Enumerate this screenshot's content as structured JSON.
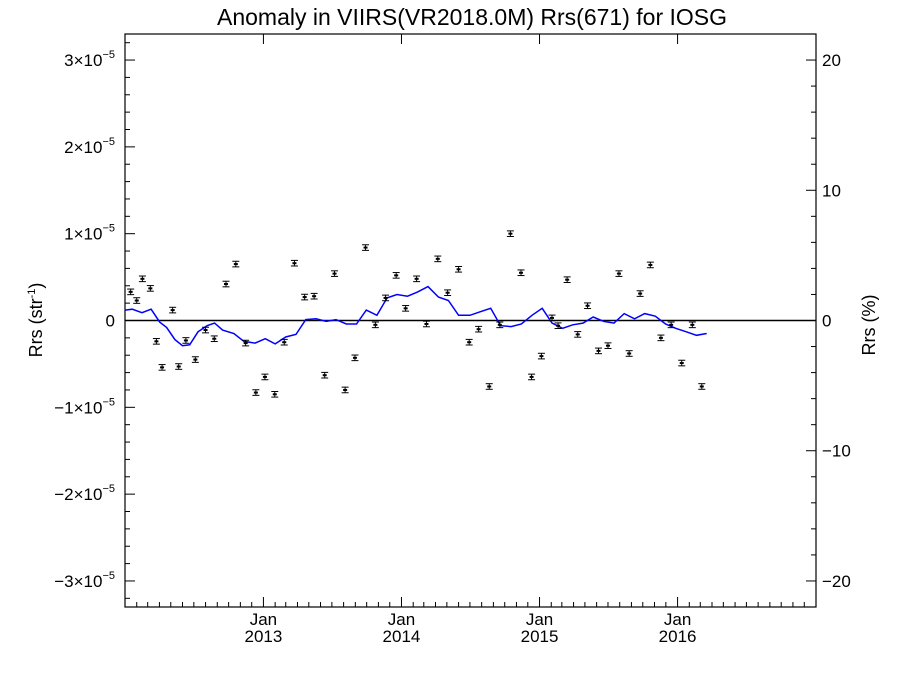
{
  "chart_data": {
    "type": "line",
    "title": "Anomaly in VIIRS(VR2018.0M) Rrs(671) for IOSG",
    "ylabel": "Rrs (str",
    "ylabel_sup": "-1",
    "ylabel_close": ")",
    "y2label": "Rrs (%)",
    "xlim": [
      "2012-01-01",
      "2017-01-01"
    ],
    "ylim": [
      -3.3e-05,
      3.3e-05
    ],
    "y2lim": [
      -22,
      22
    ],
    "grid": false,
    "legend": "none",
    "y_ticks": [
      {
        "value": -3e-05,
        "mant": "−3×10",
        "exp": "−5"
      },
      {
        "value": -2e-05,
        "mant": "−2×10",
        "exp": "−5"
      },
      {
        "value": -1e-05,
        "mant": "−1×10",
        "exp": "−5"
      },
      {
        "value": 0,
        "mant": "0",
        "exp": ""
      },
      {
        "value": 1e-05,
        "mant": "1×10",
        "exp": "−5"
      },
      {
        "value": 2e-05,
        "mant": "2×10",
        "exp": "−5"
      },
      {
        "value": 3e-05,
        "mant": "3×10",
        "exp": "−5"
      }
    ],
    "y2_ticks": [
      {
        "value": -20,
        "label": "−20"
      },
      {
        "value": -10,
        "label": "−10"
      },
      {
        "value": 0,
        "label": "0"
      },
      {
        "value": 10,
        "label": "10"
      },
      {
        "value": 20,
        "label": "20"
      }
    ],
    "x_ticks": [
      {
        "date": "2013-01-01",
        "month": "Jan",
        "year": "2013"
      },
      {
        "date": "2014-01-01",
        "month": "Jan",
        "year": "2014"
      },
      {
        "date": "2015-01-01",
        "month": "Jan",
        "year": "2015"
      },
      {
        "date": "2016-01-01",
        "month": "Jan",
        "year": "2016"
      }
    ],
    "series": [
      {
        "kind": "points_with_errorbars",
        "color": "#000000",
        "error": 1.5e-07,
        "points": [
          {
            "x": "2012-01-16",
            "y": 3.3e-06
          },
          {
            "x": "2012-02-01",
            "y": 2.3e-06
          },
          {
            "x": "2012-02-16",
            "y": 4.8e-06
          },
          {
            "x": "2012-03-08",
            "y": 3.7e-06
          },
          {
            "x": "2012-03-24",
            "y": -2.4e-06
          },
          {
            "x": "2012-04-08",
            "y": -5.4e-06
          },
          {
            "x": "2012-05-06",
            "y": 1.2e-06
          },
          {
            "x": "2012-05-22",
            "y": -5.3e-06
          },
          {
            "x": "2012-06-10",
            "y": -2.3e-06
          },
          {
            "x": "2012-07-05",
            "y": -4.5e-06
          },
          {
            "x": "2012-08-01",
            "y": -1.1e-06
          },
          {
            "x": "2012-08-24",
            "y": -2.1e-06
          },
          {
            "x": "2012-09-24",
            "y": 4.2e-06
          },
          {
            "x": "2012-10-20",
            "y": 6.5e-06
          },
          {
            "x": "2012-11-15",
            "y": -2.6e-06
          },
          {
            "x": "2012-12-12",
            "y": -8.3e-06
          },
          {
            "x": "2013-01-05",
            "y": -6.5e-06
          },
          {
            "x": "2013-01-31",
            "y": -8.5e-06
          },
          {
            "x": "2013-02-25",
            "y": -2.5e-06
          },
          {
            "x": "2013-03-24",
            "y": 6.6e-06
          },
          {
            "x": "2013-04-20",
            "y": 2.7e-06
          },
          {
            "x": "2013-05-15",
            "y": 2.8e-06
          },
          {
            "x": "2013-06-12",
            "y": -6.3e-06
          },
          {
            "x": "2013-07-08",
            "y": 5.4e-06
          },
          {
            "x": "2013-08-05",
            "y": -8e-06
          },
          {
            "x": "2013-08-31",
            "y": -4.3e-06
          },
          {
            "x": "2013-09-28",
            "y": 8.4e-06
          },
          {
            "x": "2013-10-24",
            "y": -5e-07
          },
          {
            "x": "2013-11-20",
            "y": 2.6e-06
          },
          {
            "x": "2013-12-18",
            "y": 5.2e-06
          },
          {
            "x": "2014-01-12",
            "y": 1.4e-06
          },
          {
            "x": "2014-02-10",
            "y": 4.8e-06
          },
          {
            "x": "2014-03-08",
            "y": -4e-07
          },
          {
            "x": "2014-04-07",
            "y": 7.1e-06
          },
          {
            "x": "2014-05-03",
            "y": 3.2e-06
          },
          {
            "x": "2014-06-01",
            "y": 5.9e-06
          },
          {
            "x": "2014-06-29",
            "y": -2.5e-06
          },
          {
            "x": "2014-07-24",
            "y": -1e-06
          },
          {
            "x": "2014-08-21",
            "y": -7.6e-06
          },
          {
            "x": "2014-09-18",
            "y": -5e-07
          },
          {
            "x": "2014-10-16",
            "y": 1e-05
          },
          {
            "x": "2014-11-13",
            "y": 5.5e-06
          },
          {
            "x": "2014-12-11",
            "y": -6.5e-06
          },
          {
            "x": "2015-01-06",
            "y": -4.1e-06
          },
          {
            "x": "2015-02-03",
            "y": 3e-07
          },
          {
            "x": "2015-02-19",
            "y": -6e-07
          },
          {
            "x": "2015-03-15",
            "y": 4.7e-06
          },
          {
            "x": "2015-04-12",
            "y": -1.6e-06
          },
          {
            "x": "2015-05-08",
            "y": 1.7e-06
          },
          {
            "x": "2015-06-06",
            "y": -3.5e-06
          },
          {
            "x": "2015-07-01",
            "y": -2.9e-06
          },
          {
            "x": "2015-07-30",
            "y": 5.4e-06
          },
          {
            "x": "2015-08-26",
            "y": -3.8e-06
          },
          {
            "x": "2015-09-24",
            "y": 3.1e-06
          },
          {
            "x": "2015-10-21",
            "y": 6.4e-06
          },
          {
            "x": "2015-11-18",
            "y": -2e-06
          },
          {
            "x": "2015-12-15",
            "y": -5e-07
          },
          {
            "x": "2016-01-12",
            "y": -4.9e-06
          },
          {
            "x": "2016-02-09",
            "y": -5e-07
          },
          {
            "x": "2016-03-05",
            "y": -7.6e-06
          }
        ]
      },
      {
        "kind": "line",
        "color": "#0000ff",
        "points": [
          {
            "x": "2012-01-01",
            "y": 1.2e-06
          },
          {
            "x": "2012-01-20",
            "y": 1.3e-06
          },
          {
            "x": "2012-02-15",
            "y": 9e-07
          },
          {
            "x": "2012-03-10",
            "y": 1.3e-06
          },
          {
            "x": "2012-04-02",
            "y": -2e-07
          },
          {
            "x": "2012-04-20",
            "y": -8e-07
          },
          {
            "x": "2012-05-12",
            "y": -2.2e-06
          },
          {
            "x": "2012-06-01",
            "y": -2.9e-06
          },
          {
            "x": "2012-06-20",
            "y": -2.8e-06
          },
          {
            "x": "2012-07-12",
            "y": -1.3e-06
          },
          {
            "x": "2012-08-05",
            "y": -6e-07
          },
          {
            "x": "2012-08-25",
            "y": -3e-07
          },
          {
            "x": "2012-09-15",
            "y": -1.1e-06
          },
          {
            "x": "2012-10-15",
            "y": -1.5e-06
          },
          {
            "x": "2012-11-10",
            "y": -2.4e-06
          },
          {
            "x": "2012-12-10",
            "y": -2.6e-06
          },
          {
            "x": "2013-01-06",
            "y": -2.1e-06
          },
          {
            "x": "2013-02-01",
            "y": -2.7e-06
          },
          {
            "x": "2013-03-01",
            "y": -1.9e-06
          },
          {
            "x": "2013-03-28",
            "y": -1.6e-06
          },
          {
            "x": "2013-04-23",
            "y": 1e-07
          },
          {
            "x": "2013-05-20",
            "y": 2e-07
          },
          {
            "x": "2013-06-16",
            "y": -1e-07
          },
          {
            "x": "2013-07-12",
            "y": 1e-07
          },
          {
            "x": "2013-08-08",
            "y": -4e-07
          },
          {
            "x": "2013-09-04",
            "y": -4e-07
          },
          {
            "x": "2013-09-30",
            "y": 1.2e-06
          },
          {
            "x": "2013-10-28",
            "y": 6e-07
          },
          {
            "x": "2013-11-24",
            "y": 2.6e-06
          },
          {
            "x": "2013-12-20",
            "y": 3e-06
          },
          {
            "x": "2014-01-17",
            "y": 2.8e-06
          },
          {
            "x": "2014-02-13",
            "y": 3.3e-06
          },
          {
            "x": "2014-03-12",
            "y": 3.9e-06
          },
          {
            "x": "2014-04-09",
            "y": 2.7e-06
          },
          {
            "x": "2014-05-05",
            "y": 2.3e-06
          },
          {
            "x": "2014-06-01",
            "y": 6e-07
          },
          {
            "x": "2014-07-01",
            "y": 6e-07
          },
          {
            "x": "2014-07-28",
            "y": 1e-06
          },
          {
            "x": "2014-08-25",
            "y": 1.4e-06
          },
          {
            "x": "2014-09-20",
            "y": -6e-07
          },
          {
            "x": "2014-10-18",
            "y": -7e-07
          },
          {
            "x": "2014-11-14",
            "y": -4e-07
          },
          {
            "x": "2014-12-12",
            "y": 6e-07
          },
          {
            "x": "2015-01-08",
            "y": 1.4e-06
          },
          {
            "x": "2015-02-03",
            "y": -3e-07
          },
          {
            "x": "2015-03-03",
            "y": -9e-07
          },
          {
            "x": "2015-03-30",
            "y": -5e-07
          },
          {
            "x": "2015-04-26",
            "y": -3e-07
          },
          {
            "x": "2015-05-23",
            "y": 4e-07
          },
          {
            "x": "2015-06-20",
            "y": -1e-07
          },
          {
            "x": "2015-07-17",
            "y": -3e-07
          },
          {
            "x": "2015-08-13",
            "y": 8e-07
          },
          {
            "x": "2015-09-09",
            "y": 2e-07
          },
          {
            "x": "2015-10-06",
            "y": 8e-07
          },
          {
            "x": "2015-11-03",
            "y": 5e-07
          },
          {
            "x": "2015-11-30",
            "y": -4e-07
          },
          {
            "x": "2015-12-27",
            "y": -9e-07
          },
          {
            "x": "2016-01-24",
            "y": -1.3e-06
          },
          {
            "x": "2016-02-20",
            "y": -1.7e-06
          },
          {
            "x": "2016-03-18",
            "y": -1.5e-06
          }
        ]
      }
    ]
  }
}
